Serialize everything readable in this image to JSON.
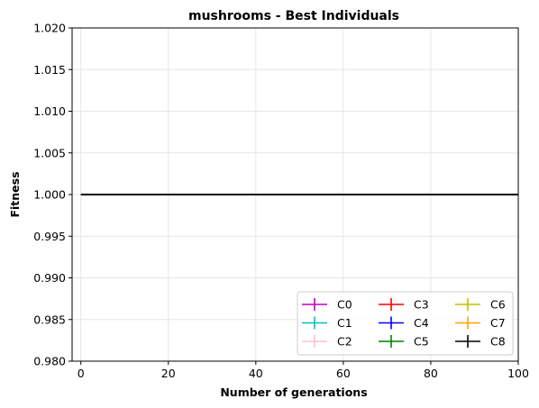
{
  "chart_data": {
    "type": "line",
    "title": "mushrooms - Best Individuals",
    "xlabel": "Number of generations",
    "ylabel": "Fitness",
    "xlim": [
      -2,
      100
    ],
    "ylim": [
      0.98,
      1.02
    ],
    "xticks": [
      0,
      20,
      40,
      60,
      80,
      100
    ],
    "yticks": [
      "0.980",
      "0.985",
      "0.990",
      "0.995",
      "1.000",
      "1.005",
      "1.010",
      "1.015",
      "1.020"
    ],
    "grid": true,
    "legend": {
      "placement": "lower-right",
      "columns": 3
    },
    "series": [
      {
        "name": "C0",
        "color": "#bf00bf",
        "x": [
          0,
          100
        ],
        "y": [
          1.0,
          1.0
        ]
      },
      {
        "name": "C1",
        "color": "#00bfbf",
        "x": [
          0,
          100
        ],
        "y": [
          1.0,
          1.0
        ]
      },
      {
        "name": "C2",
        "color": "#ffc0cb",
        "x": [
          0,
          100
        ],
        "y": [
          1.0,
          1.0
        ]
      },
      {
        "name": "C3",
        "color": "#ff0000",
        "x": [
          0,
          100
        ],
        "y": [
          1.0,
          1.0
        ]
      },
      {
        "name": "C4",
        "color": "#0000ff",
        "x": [
          0,
          100
        ],
        "y": [
          1.0,
          1.0
        ]
      },
      {
        "name": "C5",
        "color": "#008000",
        "x": [
          0,
          100
        ],
        "y": [
          1.0,
          1.0
        ]
      },
      {
        "name": "C6",
        "color": "#bfbf00",
        "x": [
          0,
          100
        ],
        "y": [
          1.0,
          1.0
        ]
      },
      {
        "name": "C7",
        "color": "#ffa500",
        "x": [
          0,
          100
        ],
        "y": [
          1.0,
          1.0
        ]
      },
      {
        "name": "C8",
        "color": "#000000",
        "x": [
          0,
          100
        ],
        "y": [
          1.0,
          1.0
        ]
      }
    ]
  }
}
